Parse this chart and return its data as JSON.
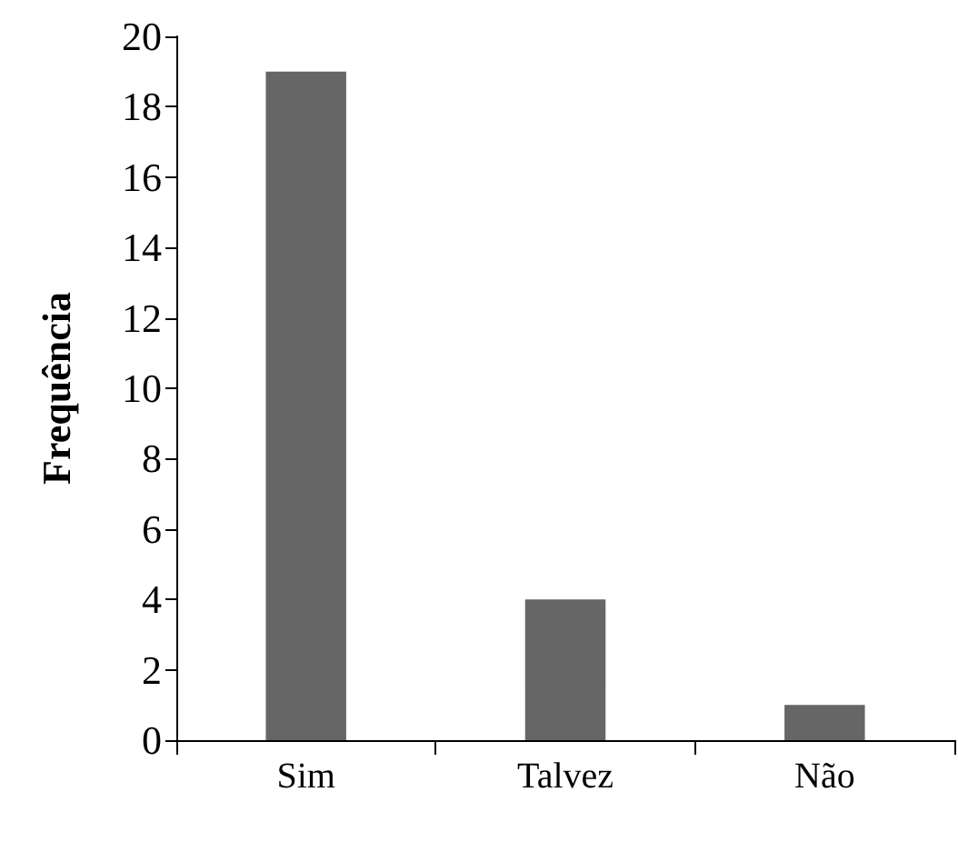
{
  "chart_data": {
    "type": "bar",
    "ylabel": "Frequência",
    "categories": [
      "Sim",
      "Talvez",
      "Não"
    ],
    "values": [
      19,
      4,
      1
    ],
    "color": "#666666",
    "ylim": [
      0,
      20
    ],
    "yticks": [
      0,
      2,
      4,
      6,
      8,
      10,
      12,
      14,
      16,
      18,
      20
    ]
  }
}
